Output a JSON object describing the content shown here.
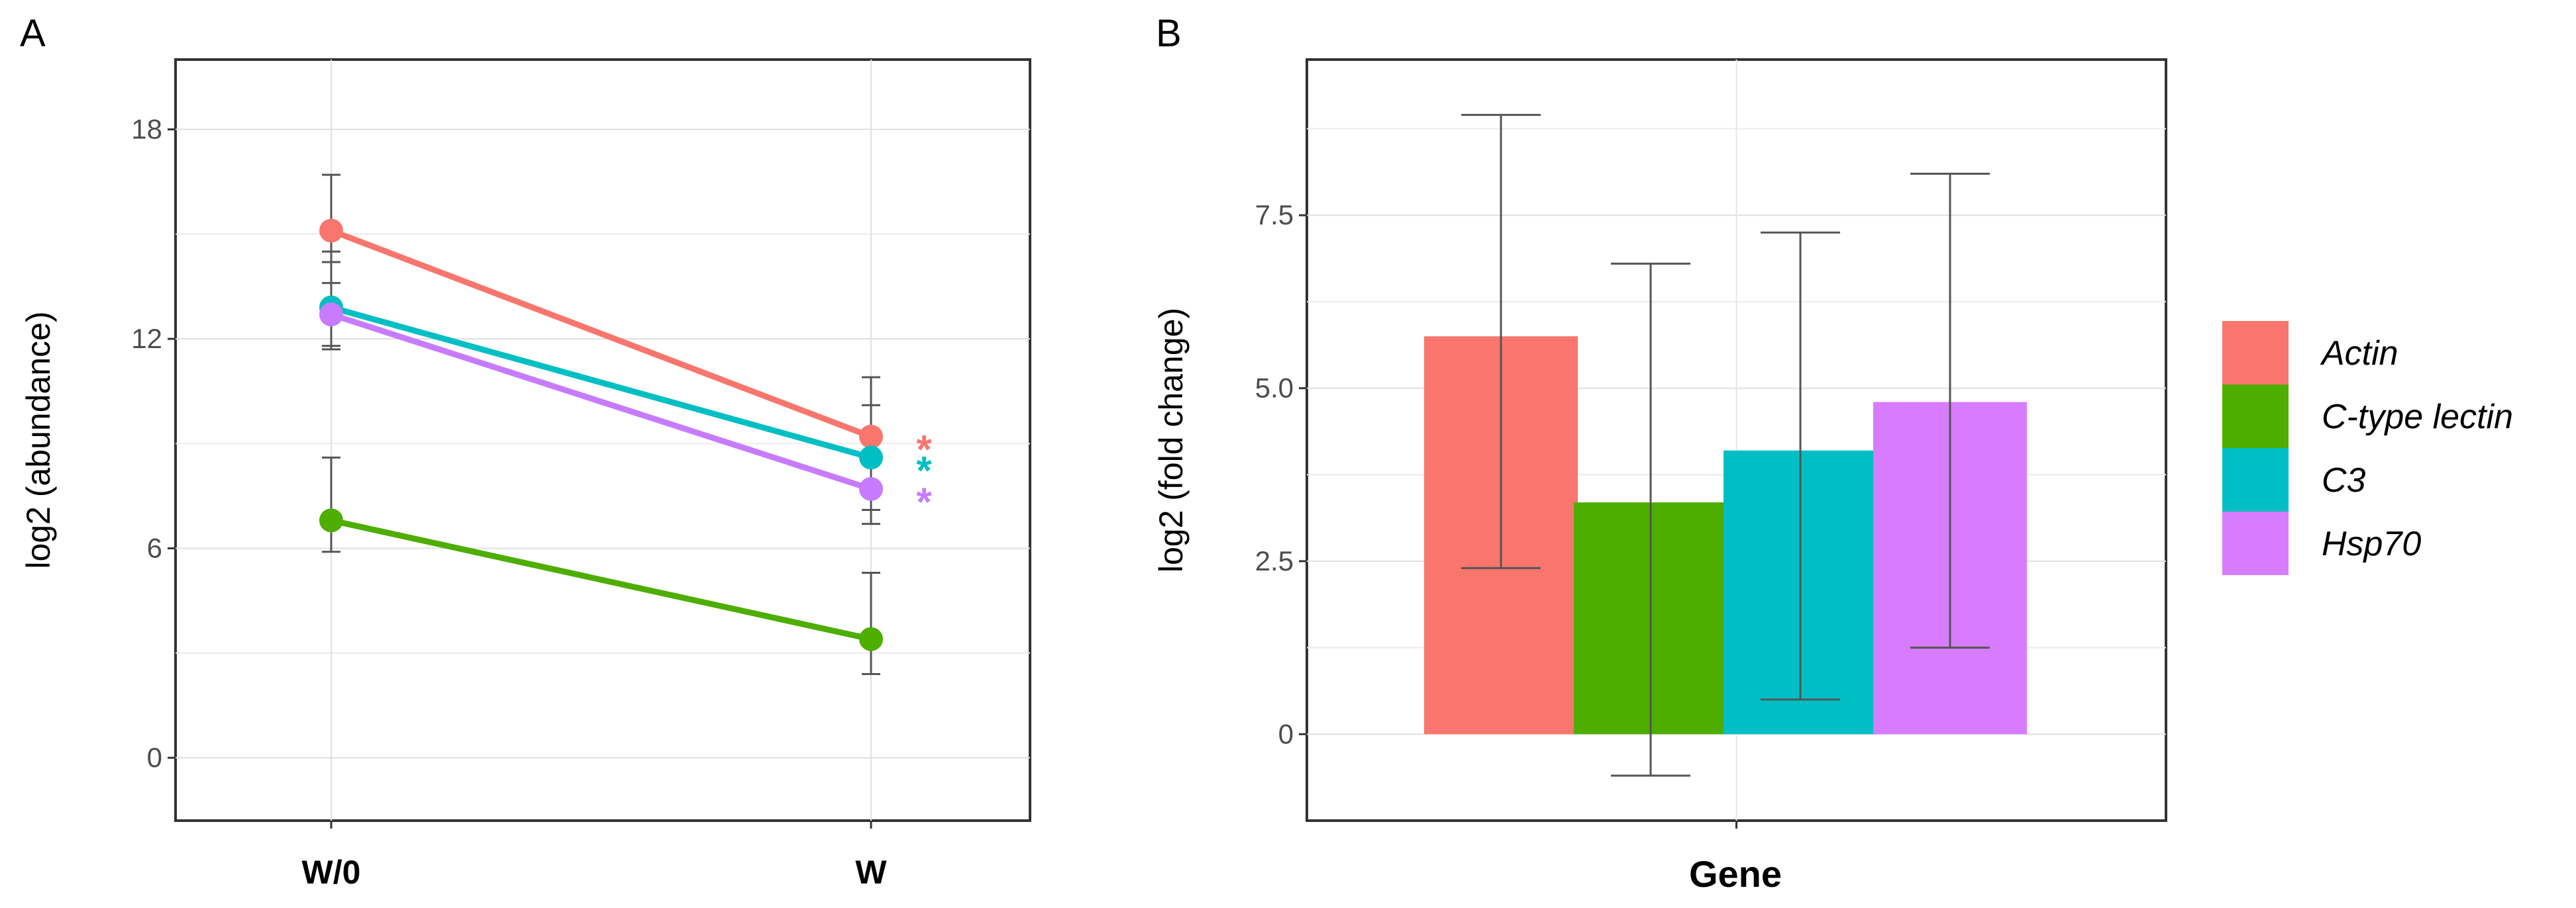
{
  "panels": {
    "a": {
      "label": "A"
    },
    "b": {
      "label": "B"
    }
  },
  "chart_data": [
    {
      "type": "line",
      "panel": "A",
      "title": "",
      "xlabel": "",
      "ylabel": "log2 (abundance)",
      "categories": [
        "W/0",
        "W"
      ],
      "ylim": [
        -1.8,
        20
      ],
      "yticks": [
        "0",
        "6",
        "12",
        "18"
      ],
      "grid": true,
      "series": [
        {
          "name": "Actin",
          "color": "#F8766D",
          "values": [
            15.1,
            9.2
          ],
          "err_low": [
            13.6,
            7.6
          ],
          "err_high": [
            16.7,
            10.9
          ],
          "significance": "*"
        },
        {
          "name": "C3",
          "color": "#00BFC4",
          "values": [
            12.9,
            8.6
          ],
          "err_low": [
            11.8,
            7.1
          ],
          "err_high": [
            14.5,
            10.1
          ],
          "significance": "*"
        },
        {
          "name": "Hsp70",
          "color": "#C77CFF",
          "values": [
            12.7,
            7.7
          ],
          "err_low": [
            11.7,
            6.7
          ],
          "err_high": [
            14.2,
            9.1
          ],
          "significance": "*"
        },
        {
          "name": "C-type lectin",
          "color": "#4DAE00",
          "values": [
            6.8,
            3.4
          ],
          "err_low": [
            5.9,
            2.4
          ],
          "err_high": [
            8.6,
            5.3
          ],
          "significance": ""
        }
      ]
    },
    {
      "type": "bar",
      "panel": "B",
      "title": "",
      "xlabel": "Gene",
      "ylabel": "log2 (fold change)",
      "categories": [
        "Actin",
        "C-type lectin",
        "C3",
        "Hsp70"
      ],
      "values": [
        5.75,
        3.35,
        4.1,
        4.8
      ],
      "err_low": [
        2.4,
        -0.6,
        0.5,
        1.25
      ],
      "err_high": [
        8.95,
        6.8,
        7.25,
        8.1
      ],
      "colors": [
        "#F8766D",
        "#4DAE00",
        "#00BFC4",
        "#D77CFF"
      ],
      "ylim": [
        -1.25,
        9.75
      ],
      "yticks": [
        "0",
        "2.5",
        "5.0",
        "7.5"
      ],
      "grid": true,
      "legend_position": "right"
    }
  ]
}
